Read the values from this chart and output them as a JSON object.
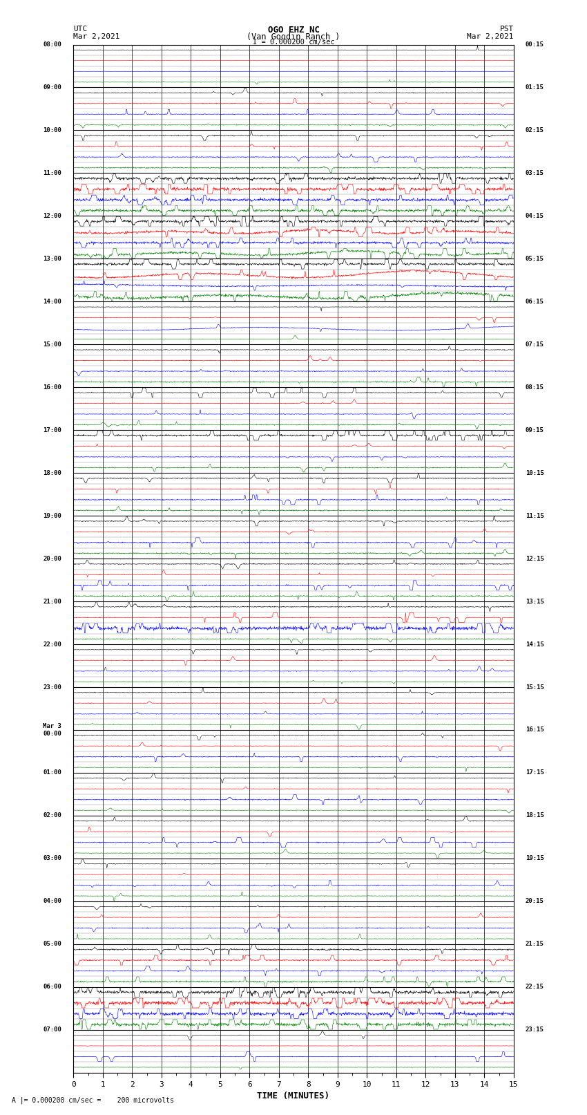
{
  "title_line1": "OGO EHZ NC",
  "title_line2": "(Van Goodin Ranch )",
  "title_scale": "I = 0.000200 cm/sec",
  "left_header": "UTC",
  "left_date": "Mar 2,2021",
  "right_header": "PST",
  "right_date": "Mar 2,2021",
  "xlabel": "TIME (MINUTES)",
  "footer_text": "A |= 0.000200 cm/sec =    200 microvolts",
  "utc_labels": [
    "08:00",
    "09:00",
    "10:00",
    "11:00",
    "12:00",
    "13:00",
    "14:00",
    "15:00",
    "16:00",
    "17:00",
    "18:00",
    "19:00",
    "20:00",
    "21:00",
    "22:00",
    "23:00",
    "Mar 3\n00:00",
    "01:00",
    "02:00",
    "03:00",
    "04:00",
    "05:00",
    "06:00",
    "07:00"
  ],
  "pst_labels": [
    "00:15",
    "01:15",
    "02:15",
    "03:15",
    "04:15",
    "05:15",
    "06:15",
    "07:15",
    "08:15",
    "09:15",
    "10:15",
    "11:15",
    "12:15",
    "13:15",
    "14:15",
    "15:15",
    "16:15",
    "17:15",
    "18:15",
    "19:15",
    "20:15",
    "21:15",
    "22:15",
    "23:15"
  ],
  "n_hours": 24,
  "colors": [
    "black",
    "red",
    "blue",
    "green"
  ],
  "bg_color": "white",
  "x_min": 0,
  "x_max": 15,
  "x_ticks": [
    0,
    1,
    2,
    3,
    4,
    5,
    6,
    7,
    8,
    9,
    10,
    11,
    12,
    13,
    14,
    15
  ]
}
